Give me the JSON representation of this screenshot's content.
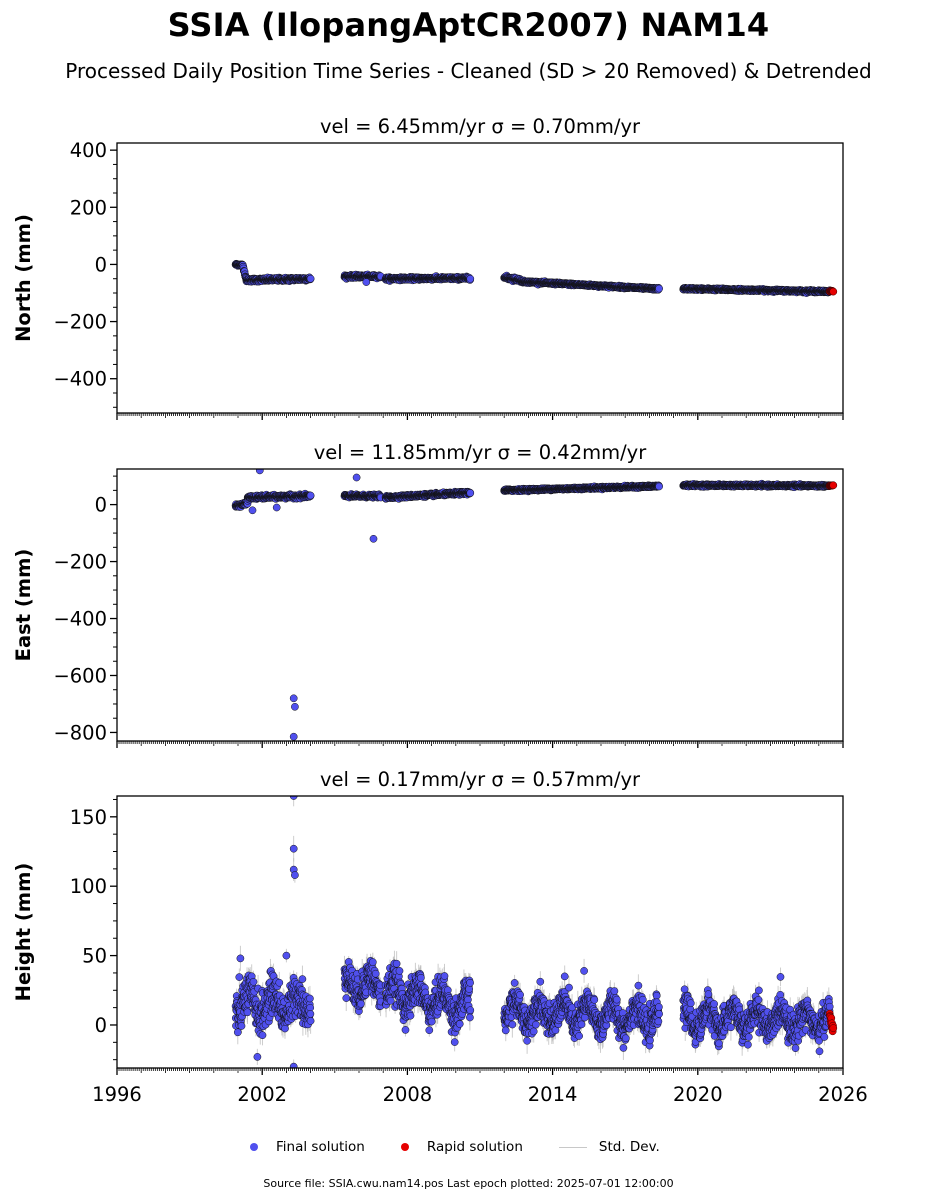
{
  "title": "SSIA (IlopangAptCR2007) NAM14",
  "subtitle": "Processed Daily Position Time Series - Cleaned (SD > 20 Removed) & Detrended",
  "legend": {
    "final": "Final solution",
    "rapid": "Rapid solution",
    "std": "Std. Dev."
  },
  "footer": "Source file: SSIA.cwu.nam14.pos  Last epoch plotted: 2025-07-01 12:00:00",
  "colors": {
    "final": "#5050ee",
    "rapid": "#e60000",
    "std": "#bdbdbd",
    "edge": "#111111"
  },
  "chart_data": [
    {
      "type": "scatter",
      "title": "vel = 6.45mm/yr   σ = 0.70mm/yr",
      "ylabel": "North (mm)",
      "xlim": [
        1996,
        2026
      ],
      "ylim": [
        -520,
        425
      ],
      "yticks": [
        400,
        200,
        0,
        -200,
        -400
      ],
      "xticks": [
        1996,
        2002,
        2008,
        2014,
        2020,
        2026
      ],
      "show_xticklabels": false,
      "segments": [
        {
          "x": [
            2000.9,
            2001.2
          ],
          "y": [
            0,
            -3
          ],
          "noise": 3
        },
        {
          "x": [
            2001.2,
            2001.35
          ],
          "y": [
            -3,
            -55
          ],
          "noise": 4
        },
        {
          "x": [
            2001.35,
            2004.0
          ],
          "y": [
            -55,
            -50
          ],
          "noise": 5
        },
        {
          "x": [
            2005.4,
            2006.9
          ],
          "y": [
            -42,
            -42
          ],
          "noise": 4
        },
        {
          "x": [
            2007.1,
            2010.6
          ],
          "y": [
            -50,
            -48
          ],
          "noise": 4
        },
        {
          "x": [
            2012.0,
            2012.7
          ],
          "y": [
            -45,
            -55
          ],
          "noise": 5
        },
        {
          "x": [
            2012.7,
            2018.4
          ],
          "y": [
            -60,
            -86
          ],
          "noise": 3
        },
        {
          "x": [
            2019.4,
            2025.45
          ],
          "y": [
            -85,
            -95
          ],
          "noise": 3
        }
      ],
      "outliers": [
        {
          "x": 2006.3,
          "y": -62
        }
      ],
      "rapid": {
        "x": [
          2025.45,
          2025.6
        ],
        "y": [
          -92,
          -94
        ],
        "noise": 2
      },
      "std_dev": 0
    },
    {
      "type": "scatter",
      "title": "vel = 11.85mm/yr   σ = 0.42mm/yr",
      "ylabel": "East (mm)",
      "xlim": [
        1996,
        2026
      ],
      "ylim": [
        -830,
        125
      ],
      "yticks": [
        0,
        -200,
        -400,
        -600,
        -800
      ],
      "xticks": [
        1996,
        2002,
        2008,
        2014,
        2020,
        2026
      ],
      "show_xticklabels": false,
      "segments": [
        {
          "x": [
            2000.9,
            2001.4
          ],
          "y": [
            -5,
            5
          ],
          "noise": 5
        },
        {
          "x": [
            2001.4,
            2004.0
          ],
          "y": [
            25,
            30
          ],
          "noise": 5
        },
        {
          "x": [
            2005.4,
            2006.9
          ],
          "y": [
            30,
            30
          ],
          "noise": 4
        },
        {
          "x": [
            2007.1,
            2010.6
          ],
          "y": [
            25,
            42
          ],
          "noise": 4
        },
        {
          "x": [
            2012.0,
            2018.4
          ],
          "y": [
            50,
            65
          ],
          "noise": 3
        },
        {
          "x": [
            2019.4,
            2025.45
          ],
          "y": [
            68,
            66
          ],
          "noise": 3
        }
      ],
      "outliers": [
        {
          "x": 2001.9,
          "y": 120
        },
        {
          "x": 2001.6,
          "y": -20
        },
        {
          "x": 2002.6,
          "y": -10
        },
        {
          "x": 2005.9,
          "y": 95
        },
        {
          "x": 2006.6,
          "y": -120
        },
        {
          "x": 2003.3,
          "y": -680
        },
        {
          "x": 2003.35,
          "y": -710
        },
        {
          "x": 2003.3,
          "y": -815
        }
      ],
      "rapid": {
        "x": [
          2025.45,
          2025.6
        ],
        "y": [
          66,
          68
        ],
        "noise": 2
      },
      "std_dev": 0
    },
    {
      "type": "scatter",
      "title": "vel = 0.17mm/yr   σ = 0.57mm/yr",
      "ylabel": "Height (mm)",
      "xlim": [
        1996,
        2026
      ],
      "ylim": [
        -31,
        165
      ],
      "yticks": [
        150,
        100,
        50,
        0
      ],
      "xticks": [
        1996,
        2002,
        2008,
        2014,
        2020,
        2026
      ],
      "show_xticklabels": true,
      "segments": [
        {
          "x": [
            2000.9,
            2004.0
          ],
          "y": [
            15,
            15
          ],
          "noise": 12,
          "seasonal": 8
        },
        {
          "x": [
            2005.4,
            2006.9
          ],
          "y": [
            30,
            28
          ],
          "noise": 10,
          "seasonal": 8
        },
        {
          "x": [
            2007.1,
            2010.6
          ],
          "y": [
            25,
            12
          ],
          "noise": 10,
          "seasonal": 8
        },
        {
          "x": [
            2012.0,
            2018.4
          ],
          "y": [
            10,
            5
          ],
          "noise": 9,
          "seasonal": 8
        },
        {
          "x": [
            2019.4,
            2025.45
          ],
          "y": [
            5,
            3
          ],
          "noise": 9,
          "seasonal": 8
        }
      ],
      "outliers": [
        {
          "x": 2003.3,
          "y": 165
        },
        {
          "x": 2003.3,
          "y": 127
        },
        {
          "x": 2003.3,
          "y": 112
        },
        {
          "x": 2003.35,
          "y": 108
        },
        {
          "x": 2003.3,
          "y": -30
        },
        {
          "x": 2001.8,
          "y": -23
        },
        {
          "x": 2001.1,
          "y": 48
        },
        {
          "x": 2015.3,
          "y": 39
        },
        {
          "x": 2014.5,
          "y": 35
        },
        {
          "x": 2003.0,
          "y": 50
        }
      ],
      "rapid": {
        "x": [
          2025.45,
          2025.6
        ],
        "y": [
          8,
          -4
        ],
        "noise": 3
      },
      "std_dev": 7
    }
  ]
}
